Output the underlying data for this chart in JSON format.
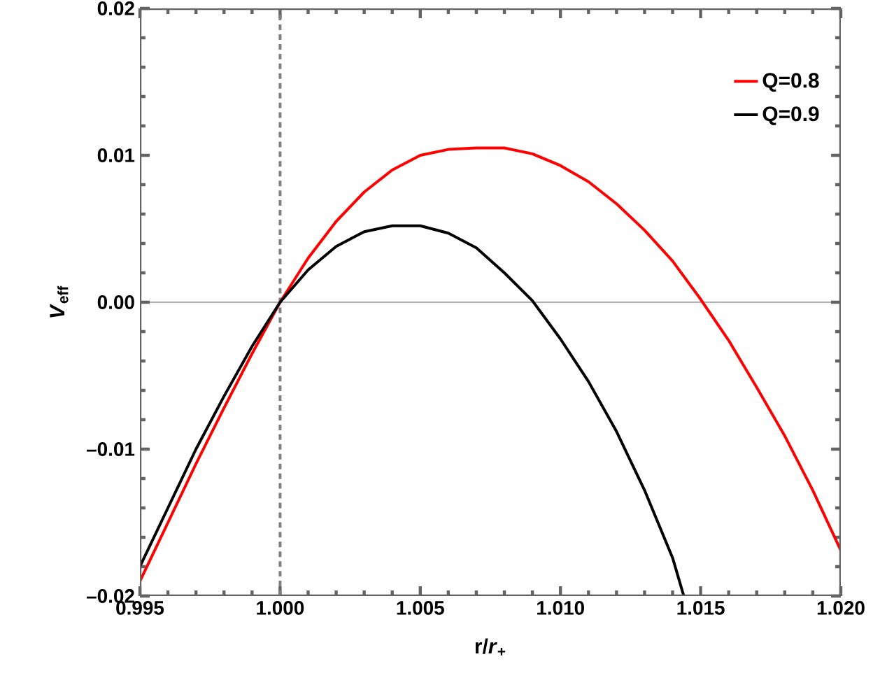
{
  "chart_data": {
    "type": "line",
    "xlabel": "r/*r*$_{+}$",
    "ylabel": "*V*$_{eff}$",
    "xlim": [
      0.995,
      1.02
    ],
    "ylim": [
      -0.02,
      0.02
    ],
    "xticks": [
      {
        "value": 0.995,
        "label": "0.995"
      },
      {
        "value": 1.0,
        "label": "1.000"
      },
      {
        "value": 1.005,
        "label": "1.005"
      },
      {
        "value": 1.01,
        "label": "1.010"
      },
      {
        "value": 1.015,
        "label": "1.015"
      },
      {
        "value": 1.02,
        "label": "1.020"
      }
    ],
    "yticks": [
      {
        "value": -0.02,
        "label": "–0.02"
      },
      {
        "value": -0.01,
        "label": "–0.01"
      },
      {
        "value": 0,
        "label": "0.00"
      },
      {
        "value": 0.01,
        "label": "0.01"
      },
      {
        "value": 0.02,
        "label": "0.02"
      }
    ],
    "grid": false,
    "legend": "top right",
    "marker": "none",
    "line_style": "solid",
    "ref_lines": [
      {
        "axis": "x",
        "value": 1.0,
        "color": "#808080",
        "line_style": "dashed"
      },
      {
        "axis": "y",
        "value": 0,
        "color": "#606060",
        "line_style": "solid"
      }
    ],
    "series": [
      {
        "name": "Q=0.8",
        "color": "#ff0000",
        "x": [
          0.995,
          0.996,
          0.997,
          0.998,
          0.999,
          1.0,
          1.001,
          1.002,
          1.003,
          1.004,
          1.005,
          1.006,
          1.007,
          1.008,
          1.009,
          1.01,
          1.011,
          1.012,
          1.013,
          1.014,
          1.015,
          1.016,
          1.017,
          1.018,
          1.019,
          1.02
        ],
        "values": [
          -0.019,
          -0.015,
          -0.011,
          -0.0072,
          -0.0035,
          0.0,
          0.003,
          0.0055,
          0.0075,
          0.009,
          0.01,
          0.0104,
          0.0105,
          0.0105,
          0.0101,
          0.0093,
          0.0082,
          0.0067,
          0.0049,
          0.0028,
          0.0002,
          -0.0026,
          -0.0058,
          -0.0091,
          -0.0128,
          -0.0169
        ]
      },
      {
        "name": "Q=0.9",
        "color": "#000000",
        "x": [
          0.995,
          0.996,
          0.997,
          0.998,
          0.999,
          1.0,
          1.001,
          1.002,
          1.003,
          1.004,
          1.005,
          1.006,
          1.007,
          1.008,
          1.009,
          1.01,
          1.011,
          1.012,
          1.013,
          1.014,
          1.0144
        ],
        "values": [
          -0.018,
          -0.014,
          -0.01,
          -0.0064,
          -0.003,
          0.0,
          0.0022,
          0.0038,
          0.0048,
          0.0052,
          0.0052,
          0.0047,
          0.0037,
          0.002,
          0.0001,
          -0.0025,
          -0.0054,
          -0.0088,
          -0.0128,
          -0.0174,
          -0.02
        ]
      }
    ]
  }
}
